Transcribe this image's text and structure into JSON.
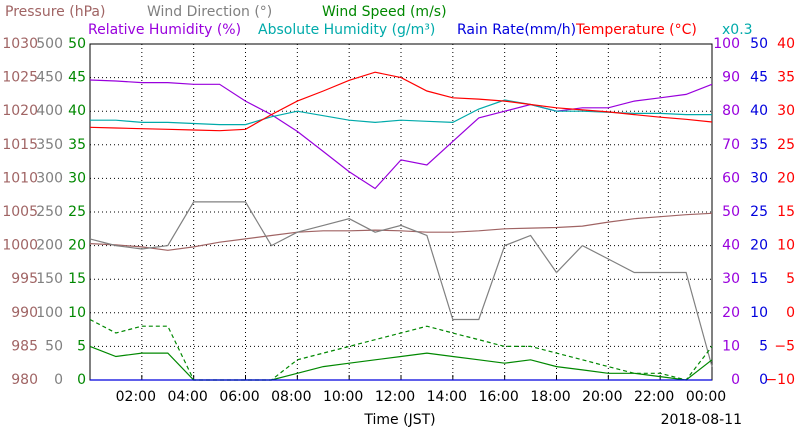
{
  "chart_data": {
    "type": "line",
    "xlabel": "Time (JST)",
    "date": "2018-08-11",
    "x": [
      0,
      1,
      2,
      3,
      4,
      5,
      6,
      7,
      8,
      9,
      10,
      11,
      12,
      13,
      14,
      15,
      16,
      17,
      18,
      19,
      20,
      21,
      22,
      23,
      24
    ],
    "xlim": [
      0,
      24
    ],
    "xticks": [
      {
        "value": 2,
        "label": "02:00"
      },
      {
        "value": 4,
        "label": "04:00"
      },
      {
        "value": 6,
        "label": "06:00"
      },
      {
        "value": 8,
        "label": "08:00"
      },
      {
        "value": 10,
        "label": "10:00"
      },
      {
        "value": 12,
        "label": "12:00"
      },
      {
        "value": 14,
        "label": "14:00"
      },
      {
        "value": 16,
        "label": "16:00"
      },
      {
        "value": 18,
        "label": "18:00"
      },
      {
        "value": 20,
        "label": "20:00"
      },
      {
        "value": 22,
        "label": "22:00"
      },
      {
        "value": 24,
        "label": "00:00"
      }
    ],
    "grid": true,
    "axes": [
      {
        "title": "Pressure (hPa)",
        "color": "#a06464",
        "side": "left",
        "lim": [
          980,
          1030
        ],
        "ticks": [
          980,
          985,
          990,
          995,
          1000,
          1005,
          1010,
          1015,
          1020,
          1025,
          1030
        ]
      },
      {
        "title": "Wind Direction (°)",
        "color": "#808080",
        "side": "left",
        "lim": [
          0,
          500
        ],
        "ticks": [
          0,
          50,
          100,
          150,
          200,
          250,
          300,
          350,
          400,
          450,
          500
        ]
      },
      {
        "title": "Wind Speed (m/s)",
        "color": "#008800",
        "side": "left",
        "lim": [
          0,
          50
        ],
        "ticks": [
          0,
          5,
          10,
          15,
          20,
          25,
          30,
          35,
          40,
          45,
          50
        ]
      },
      {
        "title": "Relative Humidity (%)",
        "color": "#9900dd",
        "side": "right",
        "lim": [
          0,
          100
        ],
        "ticks": [
          0,
          10,
          20,
          30,
          40,
          50,
          60,
          70,
          80,
          90,
          100
        ]
      },
      {
        "title": "Rain Rate(mm/h)",
        "color": "#0000dd",
        "side": "right",
        "lim": [
          0,
          50
        ],
        "ticks": [
          0,
          5,
          10,
          15,
          20,
          25,
          30,
          35,
          40,
          45,
          50
        ]
      },
      {
        "title": "Temperature (°C)",
        "color": "#ff0000",
        "side": "right",
        "lim": [
          -10,
          40
        ],
        "ticks": [
          {
            "value": -10,
            "label": "−10"
          },
          {
            "value": -5,
            "label": "−5"
          },
          0,
          5,
          10,
          15,
          20,
          25,
          30,
          35,
          40
        ]
      }
    ],
    "series": [
      {
        "axis": 0,
        "color": "#a06464",
        "values": [
          1000.3,
          1000.1,
          999.8,
          999.3,
          999.8,
          1000.5,
          1001.0,
          1001.5,
          1002.0,
          1002.2,
          1002.2,
          1002.3,
          1002.2,
          1002.0,
          1002.0,
          1002.2,
          1002.5,
          1002.6,
          1002.7,
          1002.9,
          1003.5,
          1004.0,
          1004.3,
          1004.6,
          1004.8
        ]
      },
      {
        "axis": 1,
        "color": "#808080",
        "values": [
          210,
          200,
          195,
          200,
          265,
          265,
          265,
          200,
          220,
          230,
          240,
          220,
          230,
          215,
          90,
          90,
          200,
          215,
          160,
          200,
          180,
          160,
          160,
          160,
          20
        ]
      },
      {
        "axis": 2,
        "color": "#008800",
        "values": [
          5,
          3.5,
          4,
          4,
          0,
          0,
          0,
          0,
          1,
          2,
          2.5,
          3,
          3.5,
          4,
          3.5,
          3,
          2.5,
          3,
          2,
          1.5,
          1,
          1,
          0.5,
          0,
          3
        ]
      },
      {
        "axis": 2,
        "color": "#008800",
        "dash": true,
        "values": [
          9,
          7,
          8,
          8,
          0,
          0,
          0,
          0,
          3,
          4,
          5,
          6,
          7,
          8,
          7,
          6,
          5,
          5,
          4,
          3,
          2,
          1,
          1,
          0,
          5
        ]
      },
      {
        "axis": 3,
        "color": "#9900dd",
        "values": [
          89.3,
          89,
          88.5,
          88.5,
          88,
          88,
          83,
          79,
          74,
          68,
          62,
          57,
          65.5,
          64,
          71,
          78,
          80,
          82,
          80,
          81,
          81,
          83,
          84,
          85,
          88
        ]
      },
      {
        "axis": 3,
        "name": "Absolute Humidity (g/m³)",
        "color": "#00aaaa",
        "scale": {
          "value": 0.3,
          "label": "x0.3"
        },
        "values": [
          23.2,
          23.2,
          23.0,
          23.0,
          22.9,
          22.8,
          22.8,
          23.5,
          24.0,
          23.6,
          23.2,
          23.0,
          23.2,
          23.1,
          23.0,
          24.2,
          25.0,
          24.6,
          24.0,
          24.0,
          23.9,
          23.8,
          23.8,
          23.7,
          23.7
        ]
      },
      {
        "axis": 4,
        "color": "#0000dd",
        "values": [
          0,
          0,
          0,
          0,
          0,
          0,
          0,
          0,
          0,
          0,
          0,
          0,
          0,
          0,
          0,
          0,
          0,
          0,
          0,
          0,
          0,
          0,
          0,
          0,
          0
        ]
      },
      {
        "axis": 5,
        "color": "#ff0000",
        "values": [
          27.6,
          27.5,
          27.4,
          27.3,
          27.2,
          27.1,
          27.3,
          29.5,
          31.5,
          33.0,
          34.6,
          35.8,
          35.0,
          33.0,
          32.0,
          31.8,
          31.5,
          31.0,
          30.5,
          30.2,
          29.9,
          29.5,
          29.1,
          28.8,
          28.4
        ]
      }
    ]
  }
}
